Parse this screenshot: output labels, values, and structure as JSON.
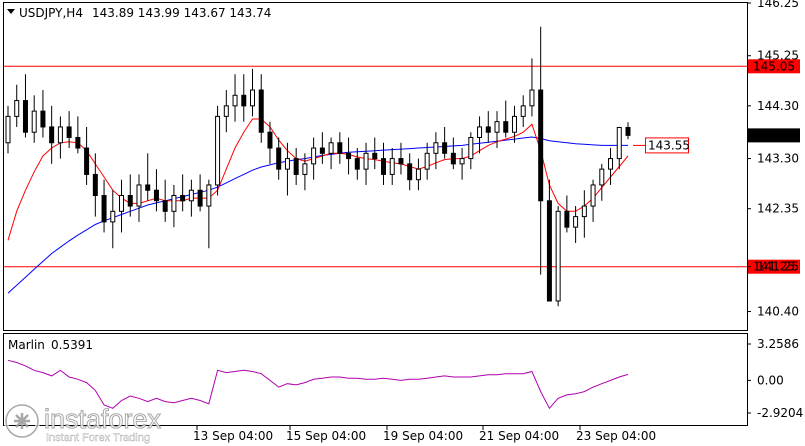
{
  "header": {
    "symbol": "USDJPY,H4",
    "ohlc": "143.89 143.99 143.67 143.74"
  },
  "chart_data": {
    "type": "candlestick",
    "symbol": "USDJPY",
    "timeframe": "H4",
    "ylim": [
      140.05,
      146.25
    ],
    "y_ticks": [
      "146.25",
      "145.25",
      "144.30",
      "143.30",
      "142.35",
      "141.25",
      "140.40"
    ],
    "x_ticks": [
      "13 Sep 04:00",
      "15 Sep 04:00",
      "19 Sep 04:00",
      "21 Sep 04:00",
      "23 Sep 04:00"
    ],
    "levels": [
      {
        "value": 145.05,
        "label": "145.05",
        "color": "#ff0000"
      },
      {
        "value": 141.25,
        "label": "141.25",
        "color": "#ff0000"
      }
    ],
    "current_price": {
      "value": 143.74,
      "label": "143.74"
    },
    "ma_annotation": {
      "value": 143.55,
      "label": "143.55",
      "color": "#ff0000"
    },
    "candles": [
      [
        143.6,
        144.3,
        143.4,
        144.1
      ],
      [
        144.1,
        144.7,
        143.9,
        144.4
      ],
      [
        144.4,
        144.9,
        143.7,
        143.8
      ],
      [
        143.8,
        144.5,
        143.6,
        144.2
      ],
      [
        144.2,
        144.6,
        143.7,
        143.9
      ],
      [
        143.9,
        144.3,
        143.2,
        143.6
      ],
      [
        143.6,
        144.1,
        143.3,
        143.9
      ],
      [
        143.9,
        144.2,
        143.5,
        143.7
      ],
      [
        143.7,
        144.1,
        143.4,
        143.5
      ],
      [
        143.5,
        143.9,
        142.8,
        143.0
      ],
      [
        143.0,
        143.4,
        142.2,
        142.6
      ],
      [
        142.6,
        142.9,
        141.9,
        142.1
      ],
      [
        142.1,
        142.7,
        141.6,
        142.3
      ],
      [
        142.3,
        142.9,
        141.9,
        142.6
      ],
      [
        142.6,
        143.0,
        142.2,
        142.4
      ],
      [
        142.4,
        143.0,
        142.1,
        142.8
      ],
      [
        142.8,
        143.4,
        142.5,
        142.7
      ],
      [
        142.7,
        143.1,
        142.3,
        142.5
      ],
      [
        142.5,
        142.9,
        142.1,
        142.3
      ],
      [
        142.3,
        142.8,
        142.0,
        142.6
      ],
      [
        142.6,
        143.0,
        142.3,
        142.5
      ],
      [
        142.5,
        142.9,
        142.2,
        142.7
      ],
      [
        142.7,
        143.0,
        142.3,
        142.4
      ],
      [
        142.4,
        142.9,
        141.6,
        142.8
      ],
      [
        142.8,
        144.3,
        142.6,
        144.1
      ],
      [
        144.1,
        144.6,
        143.8,
        144.3
      ],
      [
        144.3,
        144.9,
        144.0,
        144.5
      ],
      [
        144.5,
        144.9,
        144.0,
        144.3
      ],
      [
        144.3,
        145.0,
        144.1,
        144.6
      ],
      [
        144.6,
        144.9,
        143.6,
        143.8
      ],
      [
        143.8,
        144.0,
        143.2,
        143.5
      ],
      [
        143.5,
        143.7,
        142.9,
        143.1
      ],
      [
        143.1,
        143.6,
        142.6,
        143.3
      ],
      [
        143.3,
        143.5,
        142.8,
        143.0
      ],
      [
        143.0,
        143.4,
        142.7,
        143.2
      ],
      [
        143.2,
        143.7,
        142.9,
        143.5
      ],
      [
        143.5,
        143.8,
        143.2,
        143.4
      ],
      [
        143.4,
        143.7,
        143.1,
        143.6
      ],
      [
        143.6,
        143.8,
        143.2,
        143.4
      ],
      [
        143.4,
        143.7,
        143.0,
        143.3
      ],
      [
        143.3,
        143.5,
        142.9,
        143.1
      ],
      [
        143.1,
        143.6,
        142.8,
        143.4
      ],
      [
        143.4,
        143.7,
        143.1,
        143.3
      ],
      [
        143.3,
        143.6,
        142.8,
        143.0
      ],
      [
        143.0,
        143.5,
        142.8,
        143.3
      ],
      [
        143.3,
        143.6,
        143.0,
        143.2
      ],
      [
        143.2,
        143.4,
        142.7,
        142.9
      ],
      [
        142.9,
        143.3,
        142.7,
        143.1
      ],
      [
        143.1,
        143.6,
        142.9,
        143.4
      ],
      [
        143.4,
        143.8,
        143.1,
        143.6
      ],
      [
        143.6,
        143.9,
        143.3,
        143.4
      ],
      [
        143.4,
        143.7,
        143.1,
        143.2
      ],
      [
        143.2,
        143.5,
        142.9,
        143.3
      ],
      [
        143.3,
        143.8,
        143.1,
        143.7
      ],
      [
        143.7,
        144.1,
        143.4,
        143.9
      ],
      [
        143.9,
        144.2,
        143.6,
        143.8
      ],
      [
        143.8,
        144.2,
        143.5,
        144.0
      ],
      [
        144.0,
        144.4,
        143.7,
        143.8
      ],
      [
        143.8,
        144.3,
        143.6,
        144.1
      ],
      [
        144.1,
        144.5,
        143.9,
        144.3
      ],
      [
        144.3,
        145.2,
        144.1,
        144.6
      ],
      [
        144.6,
        145.8,
        141.1,
        142.5
      ],
      [
        142.5,
        142.9,
        140.6,
        140.6
      ],
      [
        140.6,
        142.4,
        140.5,
        142.3
      ],
      [
        142.3,
        142.6,
        141.9,
        142.0
      ],
      [
        142.0,
        142.4,
        141.7,
        142.2
      ],
      [
        142.2,
        142.7,
        141.8,
        142.4
      ],
      [
        142.4,
        142.9,
        142.1,
        142.8
      ],
      [
        142.8,
        143.2,
        142.5,
        143.1
      ],
      [
        143.1,
        143.5,
        142.8,
        143.3
      ],
      [
        143.3,
        143.9,
        143.1,
        143.89
      ],
      [
        143.89,
        143.99,
        143.67,
        143.74
      ]
    ],
    "series": [
      {
        "name": "",
        "color": "#0000ff",
        "values": [
          140.75,
          140.9,
          141.05,
          141.2,
          141.35,
          141.5,
          141.62,
          141.74,
          141.85,
          141.95,
          142.05,
          142.12,
          142.18,
          142.24,
          142.3,
          142.36,
          142.42,
          142.46,
          142.5,
          142.54,
          142.58,
          142.62,
          142.66,
          142.7,
          142.76,
          142.84,
          142.92,
          143.0,
          143.08,
          143.14,
          143.18,
          143.22,
          143.25,
          143.28,
          143.3,
          143.33,
          143.36,
          143.38,
          143.4,
          143.42,
          143.43,
          143.44,
          143.45,
          143.46,
          143.47,
          143.48,
          143.49,
          143.5,
          143.51,
          143.52,
          143.53,
          143.54,
          143.55,
          143.57,
          143.59,
          143.61,
          143.63,
          143.65,
          143.67,
          143.69,
          143.71,
          143.68,
          143.64,
          143.62,
          143.6,
          143.58,
          143.57,
          143.56,
          143.55,
          143.55,
          143.55,
          143.55
        ]
      },
      {
        "name": "",
        "color": "#ff0000",
        "values": [
          141.75,
          142.3,
          142.7,
          143.05,
          143.35,
          143.5,
          143.6,
          143.62,
          143.6,
          143.45,
          143.2,
          142.95,
          142.7,
          142.55,
          142.45,
          142.45,
          142.5,
          142.55,
          142.5,
          142.5,
          142.5,
          142.55,
          142.55,
          142.55,
          142.7,
          143.1,
          143.5,
          143.8,
          144.05,
          144.05,
          143.9,
          143.65,
          143.45,
          143.3,
          143.25,
          143.3,
          143.35,
          143.4,
          143.4,
          143.38,
          143.33,
          143.3,
          143.28,
          143.25,
          143.22,
          143.2,
          143.15,
          143.1,
          143.15,
          143.22,
          143.28,
          143.3,
          143.3,
          143.35,
          143.45,
          143.55,
          143.62,
          143.67,
          143.72,
          143.8,
          143.95,
          143.45,
          142.8,
          142.45,
          142.3,
          142.3,
          142.4,
          142.55,
          142.75,
          142.95,
          143.15,
          143.35
        ]
      }
    ],
    "indicator": {
      "name": "Marlin",
      "value_label": "0.5391",
      "ylim": [
        -2.9204,
        3.2586
      ],
      "y_ticks": [
        "3.2586",
        "0.00",
        "-2.9204"
      ],
      "color": "#b000b0",
      "values": [
        1.8,
        1.6,
        1.3,
        0.9,
        0.7,
        0.4,
        0.9,
        0.3,
        0.1,
        -0.2,
        -0.9,
        -2.2,
        -2.5,
        -1.8,
        -1.4,
        -1.6,
        -1.9,
        -1.6,
        -1.9,
        -2.0,
        -1.8,
        -1.6,
        -1.8,
        -2.1,
        0.9,
        0.7,
        0.8,
        0.9,
        0.8,
        0.6,
        0.0,
        -0.6,
        -0.3,
        -0.4,
        -0.2,
        0.1,
        0.2,
        0.3,
        0.3,
        0.2,
        0.2,
        0.1,
        0.1,
        0.2,
        0.1,
        0.0,
        0.1,
        0.1,
        0.2,
        0.3,
        0.4,
        0.3,
        0.3,
        0.3,
        0.4,
        0.5,
        0.5,
        0.6,
        0.6,
        0.6,
        0.8,
        -1.0,
        -2.5,
        -1.6,
        -1.3,
        -1.2,
        -1.0,
        -0.6,
        -0.3,
        0.0,
        0.3,
        0.54
      ]
    }
  },
  "watermark": {
    "brand": "instaforex",
    "tagline": "Instant Forex Trading"
  }
}
